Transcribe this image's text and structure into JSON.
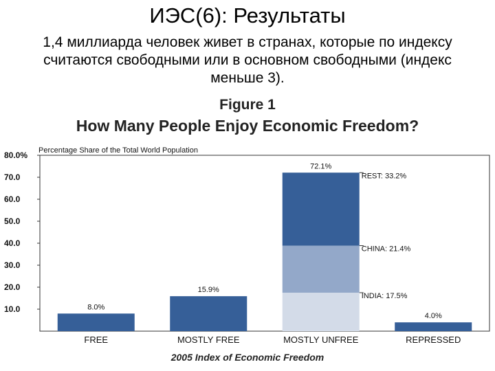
{
  "slide": {
    "title": "ИЭС(6): Результаты",
    "subtitle": "1,4 миллиарда человек живет в странах, которые по индексу считаются свободными или в основном свободными (индекс меньше 3)."
  },
  "chart_data": {
    "type": "bar",
    "title": "Figure 1",
    "subtitle": "How Many People Enjoy Economic Freedom?",
    "ylabel": "Percentage Share of the Total World Population",
    "source": "2005 Index of Economic Freedom",
    "ylim": [
      0,
      80
    ],
    "yticks": [
      "10.0",
      "20.0",
      "30.0",
      "40.0",
      "50.0",
      "60.0",
      "70.0",
      "80.0%"
    ],
    "ytick_values": [
      10,
      20,
      30,
      40,
      50,
      60,
      70,
      80
    ],
    "categories": [
      "FREE",
      "MOSTLY FREE",
      "MOSTLY UNFREE",
      "REPRESSED"
    ],
    "values": [
      8.0,
      15.9,
      72.1,
      4.0
    ],
    "value_labels": [
      "8.0%",
      "15.9%",
      "72.1%",
      "4.0%"
    ],
    "stacked_category": "MOSTLY UNFREE",
    "segments": [
      {
        "name": "INDIA",
        "value": 17.5,
        "label": "INDIA: 17.5%",
        "color": "#d3dbe8"
      },
      {
        "name": "CHINA",
        "value": 21.4,
        "label": "CHINA: 21.4%",
        "color": "#93a8c9"
      },
      {
        "name": "REST",
        "value": 33.2,
        "label": "REST: 33.2%",
        "color": "#365f98"
      }
    ],
    "bar_color": "#365f98",
    "grid": false
  }
}
